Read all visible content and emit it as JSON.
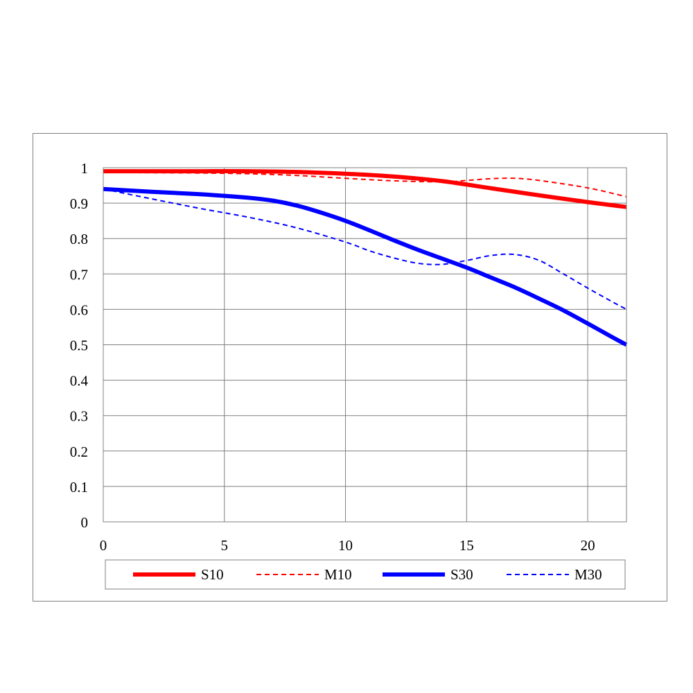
{
  "chart_data": {
    "type": "line",
    "title": "",
    "xlabel": "",
    "ylabel": "",
    "xlim": [
      0,
      21.6
    ],
    "ylim": [
      0,
      1
    ],
    "x_ticks": [
      0,
      5,
      10,
      15,
      20
    ],
    "y_ticks": [
      0,
      0.1,
      0.2,
      0.3,
      0.4,
      0.5,
      0.6,
      0.7,
      0.8,
      0.9,
      1
    ],
    "x_tick_labels": [
      "0",
      "5",
      "10",
      "15",
      "20"
    ],
    "y_tick_labels": [
      "0",
      "0.1",
      "0.2",
      "0.3",
      "0.4",
      "0.5",
      "0.6",
      "0.7",
      "0.8",
      "0.9",
      "1"
    ],
    "grid": true,
    "legend_position": "bottom",
    "series": [
      {
        "name": "S10",
        "color": "#ff0000",
        "style": "solid",
        "weight": "thick",
        "points": [
          [
            0,
            0.99
          ],
          [
            2,
            0.99
          ],
          [
            4,
            0.99
          ],
          [
            6,
            0.99
          ],
          [
            8,
            0.988
          ],
          [
            10,
            0.983
          ],
          [
            12,
            0.975
          ],
          [
            14,
            0.962
          ],
          [
            16,
            0.942
          ],
          [
            18,
            0.922
          ],
          [
            20,
            0.903
          ],
          [
            21.6,
            0.889
          ]
        ]
      },
      {
        "name": "M10",
        "color": "#ff0000",
        "style": "dashed",
        "weight": "thin",
        "points": [
          [
            0,
            0.987
          ],
          [
            2,
            0.986
          ],
          [
            4,
            0.985
          ],
          [
            6,
            0.983
          ],
          [
            8,
            0.978
          ],
          [
            10,
            0.97
          ],
          [
            12,
            0.963
          ],
          [
            14,
            0.96
          ],
          [
            15,
            0.964
          ],
          [
            16,
            0.969
          ],
          [
            17,
            0.97
          ],
          [
            18,
            0.964
          ],
          [
            20,
            0.943
          ],
          [
            21.6,
            0.918
          ]
        ]
      },
      {
        "name": "S30",
        "color": "#0000ff",
        "style": "solid",
        "weight": "thick",
        "points": [
          [
            0,
            0.94
          ],
          [
            2,
            0.932
          ],
          [
            4,
            0.925
          ],
          [
            6,
            0.915
          ],
          [
            7,
            0.907
          ],
          [
            8,
            0.893
          ],
          [
            9,
            0.873
          ],
          [
            10,
            0.85
          ],
          [
            11,
            0.823
          ],
          [
            12,
            0.795
          ],
          [
            13,
            0.768
          ],
          [
            14,
            0.743
          ],
          [
            15,
            0.718
          ],
          [
            16,
            0.69
          ],
          [
            17,
            0.662
          ],
          [
            18,
            0.63
          ],
          [
            19,
            0.597
          ],
          [
            20,
            0.56
          ],
          [
            21,
            0.522
          ],
          [
            21.6,
            0.5
          ]
        ]
      },
      {
        "name": "M30",
        "color": "#0000ff",
        "style": "dashed",
        "weight": "thin",
        "points": [
          [
            0,
            0.94
          ],
          [
            2,
            0.912
          ],
          [
            4,
            0.885
          ],
          [
            6,
            0.86
          ],
          [
            8,
            0.83
          ],
          [
            10,
            0.79
          ],
          [
            11,
            0.765
          ],
          [
            12,
            0.745
          ],
          [
            13,
            0.73
          ],
          [
            14,
            0.727
          ],
          [
            15,
            0.738
          ],
          [
            16,
            0.752
          ],
          [
            17,
            0.755
          ],
          [
            18,
            0.738
          ],
          [
            19,
            0.7
          ],
          [
            20,
            0.66
          ],
          [
            21,
            0.622
          ],
          [
            21.6,
            0.6
          ]
        ]
      }
    ]
  }
}
